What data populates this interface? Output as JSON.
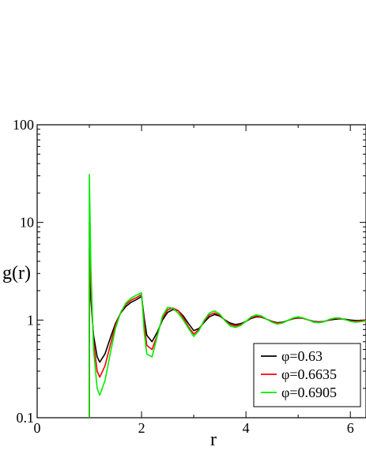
{
  "chart_data": {
    "type": "line",
    "xlabel": "r",
    "ylabel": "g(r)",
    "xlim": [
      0,
      6.3
    ],
    "ylim": [
      0.1,
      100
    ],
    "yscale": "log",
    "xticks": [
      0,
      2,
      4,
      6
    ],
    "xtick_labels": [
      "0",
      "2",
      "4",
      "6"
    ],
    "yticks": [
      0.1,
      1,
      10,
      100
    ],
    "ytick_labels": [
      "0.1",
      "1",
      "10",
      "100"
    ],
    "grid": false,
    "legend_position": "bottom-right",
    "series": [
      {
        "name": "φ=0.63",
        "color": "#000000",
        "x": [
          1.0,
          1.03,
          1.08,
          1.15,
          1.2,
          1.3,
          1.4,
          1.5,
          1.6,
          1.7,
          1.8,
          1.9,
          1.98,
          2.0,
          2.05,
          2.1,
          2.2,
          2.3,
          2.4,
          2.5,
          2.6,
          2.7,
          2.8,
          2.9,
          3.0,
          3.1,
          3.2,
          3.3,
          3.4,
          3.5,
          3.6,
          3.7,
          3.8,
          3.9,
          4.0,
          4.1,
          4.2,
          4.3,
          4.4,
          4.5,
          4.6,
          4.7,
          4.8,
          4.9,
          5.0,
          5.1,
          5.2,
          5.3,
          5.4,
          5.5,
          5.6,
          5.7,
          5.8,
          5.9,
          6.0,
          6.1,
          6.2,
          6.3
        ],
        "y": [
          5.5,
          1.6,
          0.7,
          0.42,
          0.37,
          0.45,
          0.65,
          0.92,
          1.18,
          1.38,
          1.52,
          1.62,
          1.72,
          1.74,
          1.05,
          0.7,
          0.6,
          0.75,
          1.0,
          1.2,
          1.28,
          1.25,
          1.1,
          0.92,
          0.78,
          0.82,
          0.95,
          1.08,
          1.14,
          1.1,
          1.0,
          0.93,
          0.9,
          0.92,
          0.97,
          1.04,
          1.08,
          1.07,
          1.02,
          0.97,
          0.94,
          0.95,
          0.99,
          1.03,
          1.05,
          1.04,
          1.0,
          0.97,
          0.96,
          0.97,
          1.0,
          1.02,
          1.03,
          1.02,
          1.0,
          0.99,
          0.99,
          1.0
        ]
      },
      {
        "name": "φ=0.6635",
        "color": "#ff0000",
        "x": [
          1.0,
          1.03,
          1.08,
          1.15,
          1.2,
          1.3,
          1.4,
          1.5,
          1.6,
          1.7,
          1.8,
          1.9,
          1.98,
          2.0,
          2.05,
          2.1,
          2.2,
          2.3,
          2.4,
          2.5,
          2.6,
          2.7,
          2.8,
          2.9,
          3.0,
          3.1,
          3.2,
          3.3,
          3.4,
          3.5,
          3.6,
          3.7,
          3.8,
          3.9,
          4.0,
          4.1,
          4.2,
          4.3,
          4.4,
          4.5,
          4.6,
          4.7,
          4.8,
          4.9,
          5.0,
          5.1,
          5.2,
          5.3,
          5.4,
          5.5,
          5.6,
          5.7,
          5.8,
          5.9,
          6.0,
          6.1,
          6.2,
          6.3
        ],
        "y": [
          10.0,
          2.2,
          0.6,
          0.3,
          0.26,
          0.34,
          0.55,
          0.88,
          1.2,
          1.45,
          1.6,
          1.7,
          1.8,
          1.82,
          0.9,
          0.55,
          0.5,
          0.7,
          1.05,
          1.28,
          1.33,
          1.25,
          1.05,
          0.85,
          0.72,
          0.8,
          0.98,
          1.13,
          1.18,
          1.12,
          0.99,
          0.9,
          0.87,
          0.9,
          0.97,
          1.06,
          1.1,
          1.08,
          1.02,
          0.96,
          0.93,
          0.94,
          0.99,
          1.04,
          1.06,
          1.04,
          1.0,
          0.96,
          0.95,
          0.97,
          1.01,
          1.04,
          1.04,
          1.01,
          0.98,
          0.97,
          0.98,
          1.0
        ]
      },
      {
        "name": "φ=0.6905",
        "color": "#00ee00",
        "x": [
          1.0,
          1.03,
          1.08,
          1.15,
          1.2,
          1.3,
          1.4,
          1.5,
          1.6,
          1.7,
          1.8,
          1.9,
          1.98,
          2.0,
          2.05,
          2.1,
          2.2,
          2.3,
          2.4,
          2.5,
          2.6,
          2.7,
          2.8,
          2.9,
          3.0,
          3.1,
          3.2,
          3.3,
          3.4,
          3.5,
          3.6,
          3.7,
          3.8,
          3.9,
          4.0,
          4.1,
          4.2,
          4.3,
          4.4,
          4.5,
          4.6,
          4.7,
          4.8,
          4.9,
          5.0,
          5.1,
          5.2,
          5.3,
          5.4,
          5.5,
          5.6,
          5.7,
          5.8,
          5.9,
          6.0,
          6.1,
          6.2,
          6.3
        ],
        "y": [
          31.0,
          3.5,
          0.5,
          0.2,
          0.17,
          0.24,
          0.45,
          0.82,
          1.2,
          1.5,
          1.68,
          1.8,
          1.88,
          1.9,
          0.75,
          0.45,
          0.42,
          0.68,
          1.1,
          1.35,
          1.32,
          1.18,
          1.0,
          0.82,
          0.68,
          0.78,
          1.0,
          1.18,
          1.24,
          1.15,
          0.98,
          0.87,
          0.84,
          0.88,
          0.97,
          1.08,
          1.13,
          1.1,
          1.02,
          0.95,
          0.91,
          0.93,
          0.99,
          1.05,
          1.08,
          1.05,
          1.0,
          0.95,
          0.94,
          0.96,
          1.02,
          1.05,
          1.05,
          1.01,
          0.97,
          0.95,
          0.96,
          0.98
        ]
      }
    ]
  }
}
